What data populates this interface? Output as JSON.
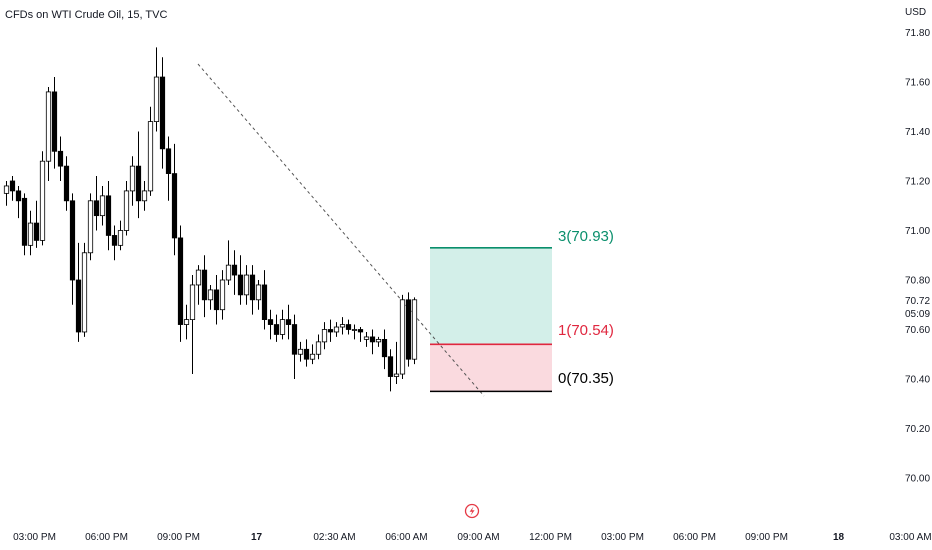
{
  "header": {
    "title": "CFDs on WTI Crude Oil, 15, TVC",
    "currency": "USD"
  },
  "price_badge": {
    "price": "70.72",
    "countdown": "05:09"
  },
  "colors": {
    "up_fill": "#ffffff",
    "down_fill": "#000000",
    "wick": "#000000",
    "target_zone": "#d3efe9",
    "stop_zone": "#fadadf",
    "level_3": "#0a8f6c",
    "level_1": "#e0273f",
    "level_0": "#000000",
    "trendline": "#555555",
    "event_icon": "#e53945"
  },
  "fib_levels": [
    {
      "label": "3(70.93)",
      "price": 70.93,
      "color": "#0a8f6c"
    },
    {
      "label": "1(70.54)",
      "price": 70.54,
      "color": "#e0273f"
    },
    {
      "label": "0(70.35)",
      "price": 70.35,
      "color": "#000000"
    }
  ],
  "chart_data": {
    "type": "candlestick",
    "title": "CFDs on WTI Crude Oil, 15, TVC",
    "y_unit": "USD",
    "ylim": [
      69.92,
      71.88
    ],
    "y_ticks": [
      {
        "value": 71.8,
        "label": "71.80"
      },
      {
        "value": 71.6,
        "label": "71.60"
      },
      {
        "value": 71.4,
        "label": "71.40"
      },
      {
        "value": 71.2,
        "label": "71.20"
      },
      {
        "value": 71.0,
        "label": "71.00"
      },
      {
        "value": 70.8,
        "label": "70.80"
      },
      {
        "value": 70.6,
        "label": "70.60"
      },
      {
        "value": 70.4,
        "label": "70.40"
      },
      {
        "value": 70.2,
        "label": "70.20"
      },
      {
        "value": 70.0,
        "label": "70.00"
      }
    ],
    "x_ticks": [
      {
        "label": "03:00 PM",
        "bar": 0,
        "bold": false
      },
      {
        "label": "06:00 PM",
        "bar": 12,
        "bold": false
      },
      {
        "label": "09:00 PM",
        "bar": 24,
        "bold": false
      },
      {
        "label": "17",
        "bar": 37,
        "bold": true
      },
      {
        "label": "02:30 AM",
        "bar": 50,
        "bold": false
      },
      {
        "label": "06:00 AM",
        "bar": 62,
        "bold": false
      },
      {
        "label": "09:00 AM",
        "bar": 74,
        "bold": false
      },
      {
        "label": "12:00 PM",
        "bar": 86,
        "bold": false
      },
      {
        "label": "03:00 PM",
        "bar": 98,
        "bold": false
      },
      {
        "label": "06:00 PM",
        "bar": 110,
        "bold": false
      },
      {
        "label": "09:00 PM",
        "bar": 122,
        "bold": false
      },
      {
        "label": "18",
        "bar": 134,
        "bold": true
      },
      {
        "label": "03:00 AM",
        "bar": 146,
        "bold": false
      }
    ],
    "candles": [
      [
        71.15,
        71.2,
        71.18,
        71.1
      ],
      [
        71.2,
        71.22,
        71.16,
        71.12
      ],
      [
        71.16,
        71.18,
        71.12,
        71.05
      ],
      [
        71.13,
        71.15,
        70.94,
        70.9
      ],
      [
        70.94,
        71.08,
        71.03,
        70.9
      ],
      [
        71.03,
        71.12,
        70.96,
        70.93
      ],
      [
        70.96,
        71.32,
        71.28,
        70.94
      ],
      [
        71.28,
        71.58,
        71.56,
        71.2
      ],
      [
        71.56,
        71.62,
        71.32,
        71.25
      ],
      [
        71.32,
        71.38,
        71.26,
        71.2
      ],
      [
        71.26,
        71.3,
        71.12,
        71.08
      ],
      [
        71.12,
        71.15,
        70.8,
        70.7
      ],
      [
        70.8,
        70.95,
        70.59,
        70.55
      ],
      [
        70.59,
        70.95,
        70.91,
        70.57
      ],
      [
        70.91,
        71.15,
        71.12,
        70.88
      ],
      [
        71.12,
        71.22,
        71.06,
        71.0
      ],
      [
        71.06,
        71.18,
        71.14,
        71.02
      ],
      [
        71.14,
        71.2,
        70.98,
        70.92
      ],
      [
        70.98,
        71.02,
        70.94,
        70.88
      ],
      [
        70.94,
        71.04,
        71.0,
        70.92
      ],
      [
        71.0,
        71.2,
        71.16,
        70.98
      ],
      [
        71.16,
        71.3,
        71.26,
        71.1
      ],
      [
        71.26,
        71.4,
        71.12,
        71.05
      ],
      [
        71.12,
        71.2,
        71.16,
        71.08
      ],
      [
        71.16,
        71.5,
        71.44,
        71.14
      ],
      [
        71.44,
        71.74,
        71.62,
        71.4
      ],
      [
        71.62,
        71.7,
        71.33,
        71.25
      ],
      [
        71.33,
        71.38,
        71.23,
        71.12
      ],
      [
        71.23,
        71.35,
        70.97,
        70.9
      ],
      [
        70.97,
        71.02,
        70.62,
        70.55
      ],
      [
        70.62,
        70.7,
        70.64,
        70.56
      ],
      [
        70.64,
        70.82,
        70.78,
        70.42
      ],
      [
        70.78,
        70.86,
        70.84,
        70.7
      ],
      [
        70.84,
        70.9,
        70.72,
        70.65
      ],
      [
        70.72,
        70.78,
        70.76,
        70.68
      ],
      [
        70.76,
        70.82,
        70.68,
        70.62
      ],
      [
        70.68,
        70.84,
        70.8,
        70.64
      ],
      [
        70.8,
        70.96,
        70.86,
        70.78
      ],
      [
        70.86,
        70.92,
        70.82,
        70.74
      ],
      [
        70.82,
        70.9,
        70.74,
        70.7
      ],
      [
        70.74,
        70.86,
        70.82,
        70.7
      ],
      [
        70.82,
        70.86,
        70.72,
        70.66
      ],
      [
        70.72,
        70.8,
        70.78,
        70.68
      ],
      [
        70.78,
        70.84,
        70.64,
        70.6
      ],
      [
        70.64,
        70.68,
        70.62,
        70.56
      ],
      [
        70.62,
        70.66,
        70.58,
        70.55
      ],
      [
        70.58,
        70.68,
        70.64,
        70.56
      ],
      [
        70.64,
        70.7,
        70.62,
        70.56
      ],
      [
        70.62,
        70.66,
        70.5,
        70.4
      ],
      [
        70.5,
        70.55,
        70.52,
        70.47
      ],
      [
        70.52,
        70.56,
        70.48,
        70.45
      ],
      [
        70.48,
        70.54,
        70.5,
        70.46
      ],
      [
        70.5,
        70.58,
        70.55,
        70.48
      ],
      [
        70.55,
        70.63,
        70.6,
        70.52
      ],
      [
        70.6,
        70.64,
        70.59,
        70.55
      ],
      [
        70.59,
        70.63,
        70.61,
        70.57
      ],
      [
        70.61,
        70.65,
        70.62,
        70.58
      ],
      [
        70.62,
        70.64,
        70.6,
        70.58
      ],
      [
        70.6,
        70.62,
        70.6,
        70.56
      ],
      [
        70.6,
        70.61,
        70.59,
        70.55
      ],
      [
        70.56,
        70.59,
        70.57,
        70.53
      ],
      [
        70.57,
        70.6,
        70.55,
        70.5
      ],
      [
        70.55,
        70.57,
        70.56,
        70.53
      ],
      [
        70.56,
        70.6,
        70.49,
        70.44
      ],
      [
        70.49,
        70.52,
        70.41,
        70.35
      ],
      [
        70.41,
        70.55,
        70.42,
        70.38
      ],
      [
        70.42,
        70.74,
        70.72,
        70.4
      ],
      [
        70.72,
        70.75,
        70.48,
        70.45
      ],
      [
        70.48,
        70.73,
        70.72,
        70.46
      ]
    ]
  }
}
